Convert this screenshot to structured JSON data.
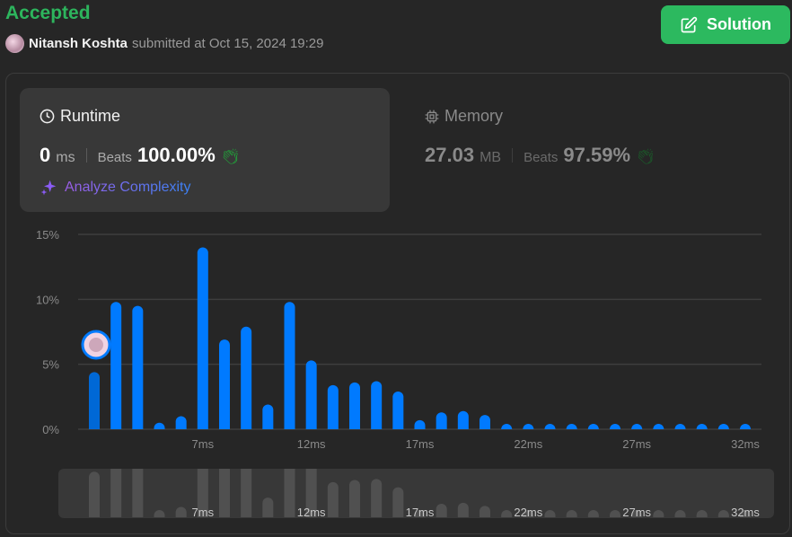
{
  "header": {
    "status": "Accepted",
    "user_name": "Nitansh Koshta",
    "submitted_text": "submitted at Oct 15, 2024 19:29",
    "solution_label": "Solution"
  },
  "runtime": {
    "title": "Runtime",
    "value": "0",
    "unit": "ms",
    "beats_label": "Beats",
    "beats_value": "100.00%",
    "analyze_label": "Analyze Complexity"
  },
  "memory": {
    "title": "Memory",
    "value": "27.03",
    "unit": "MB",
    "beats_label": "Beats",
    "beats_value": "97.59%"
  },
  "colors": {
    "accent": "#2cb95f",
    "bar": "#007aff",
    "bar_user": "#0068d6",
    "mini_bar": "#505050"
  },
  "chart_data": {
    "type": "bar",
    "x": [
      2,
      3,
      4,
      5,
      6,
      7,
      8,
      9,
      10,
      11,
      12,
      13,
      14,
      15,
      16,
      17,
      18,
      19,
      20,
      21,
      22,
      23,
      24,
      25,
      26,
      27,
      28,
      29,
      30,
      31,
      32
    ],
    "values": [
      4.4,
      9.8,
      9.5,
      0.5,
      1.0,
      14.0,
      6.9,
      7.9,
      1.9,
      9.8,
      5.3,
      3.4,
      3.6,
      3.7,
      2.9,
      0.7,
      1.3,
      1.4,
      1.1,
      0.3,
      0.3,
      0.3,
      0.3,
      0.3,
      0.3,
      0.3,
      0.3,
      0.3,
      0.3,
      0.3,
      0.3
    ],
    "user_bin": 2,
    "ylim": [
      0,
      15
    ],
    "yticks": [
      "0%",
      "5%",
      "10%",
      "15%"
    ],
    "xtick_labels": [
      "7ms",
      "12ms",
      "17ms",
      "22ms",
      "27ms",
      "32ms"
    ],
    "xtick_values": [
      7,
      12,
      17,
      22,
      27,
      32
    ],
    "grid": true
  }
}
